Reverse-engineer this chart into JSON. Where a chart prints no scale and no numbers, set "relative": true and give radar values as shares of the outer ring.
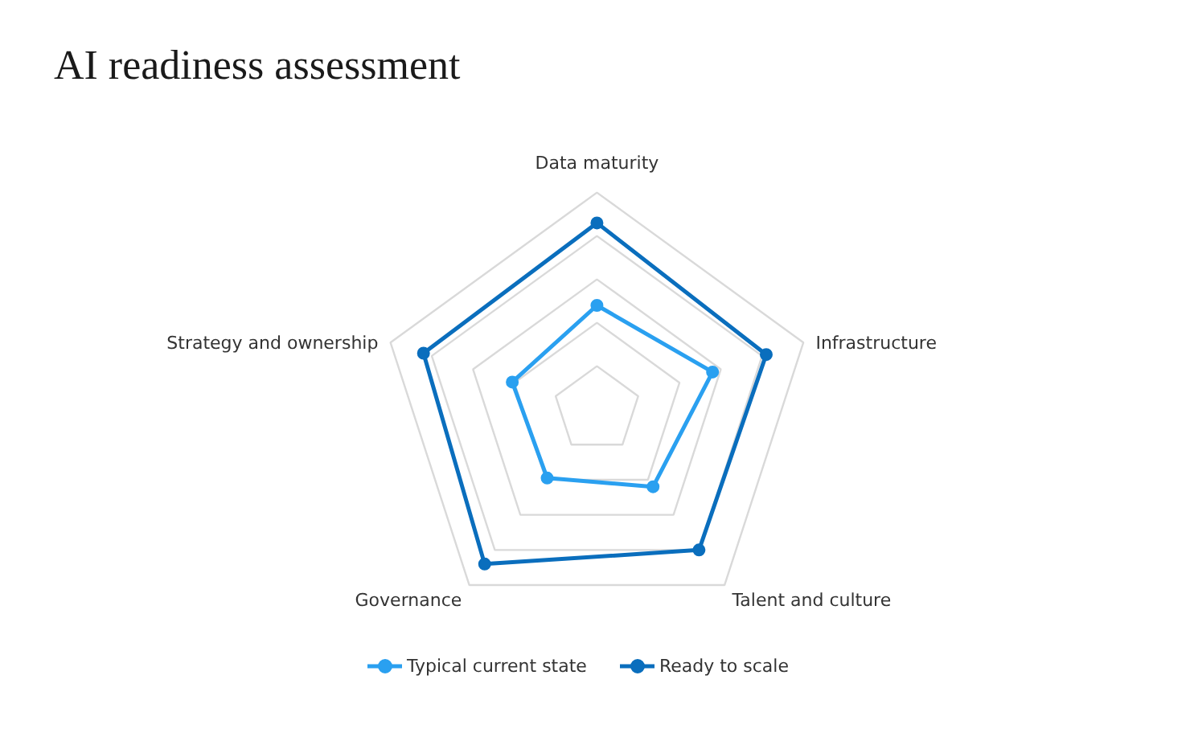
{
  "chart_data": {
    "type": "radar",
    "title": "AI readiness assessment",
    "relative": true,
    "grid": true,
    "legend": "bottom",
    "marker": "circle",
    "line_style": "solid",
    "categories": [
      "Data maturity",
      "Infrastructure",
      "Talent and culture",
      "Governance",
      "Strategy and ownership"
    ],
    "series": [
      {
        "name": "Typical current state",
        "color": "#2aa0f0",
        "values": [
          0.48,
          0.56,
          0.44,
          0.39,
          0.41
        ]
      },
      {
        "name": "Ready to scale",
        "color": "#0a6ebd",
        "values": [
          0.86,
          0.82,
          0.8,
          0.88,
          0.84
        ]
      }
    ]
  }
}
